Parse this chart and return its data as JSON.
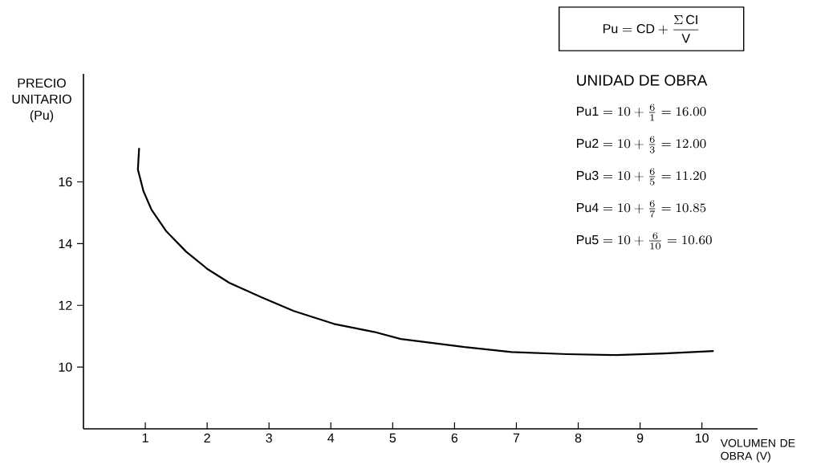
{
  "chart_data": {
    "type": "line",
    "xlabel": "VOLUMEN DE OBRA (V)",
    "ylabel": "PRECIO UNITARIO (Pu)",
    "x": [
      0.9,
      0.88,
      0.97,
      1.1,
      1.34,
      1.66,
      2.01,
      2.36,
      2.88,
      3.4,
      4.05,
      4.7,
      5.13,
      5.26,
      6.16,
      6.92,
      7.82,
      8.62,
      9.39,
      10.19
    ],
    "series": [
      {
        "color": "#000000",
        "values": [
          17.1,
          16.4,
          15.7,
          15.1,
          14.4,
          13.74,
          13.17,
          12.73,
          12.26,
          11.82,
          11.4,
          11.14,
          10.91,
          10.88,
          10.65,
          10.49,
          10.42,
          10.39,
          10.44,
          10.52
        ]
      }
    ],
    "xlim": [
      0,
      10.9
    ],
    "ylim": [
      8,
      19.5
    ],
    "xticks": [
      {
        "value": 1,
        "label": "1"
      },
      {
        "value": 2,
        "label": "2"
      },
      {
        "value": 3,
        "label": "3"
      },
      {
        "value": 4,
        "label": "4"
      },
      {
        "value": 5,
        "label": "5"
      },
      {
        "value": 6,
        "label": "6"
      },
      {
        "value": 7,
        "label": "7"
      },
      {
        "value": 8,
        "label": "8"
      },
      {
        "value": 9,
        "label": "9"
      },
      {
        "value": 10,
        "label": "10"
      }
    ],
    "yticks": [
      {
        "value": 10,
        "label": "10"
      },
      {
        "value": 12,
        "label": "12"
      },
      {
        "value": 14,
        "label": "14"
      },
      {
        "value": 16,
        "label": "16"
      }
    ],
    "annotations": [
      "\\mathrm{Pu} = \\mathrm{CD} + \\frac{\\Sigma\\,\\mathrm{CI}}{\\mathrm{V}}",
      "UNIDAD DE OBRA",
      "\\mathrm{Pu1} = 10 + \\frac{6}{1} = 16.00",
      "\\mathrm{Pu2} = 10 + \\frac{6}{3} = 12.00",
      "\\mathrm{Pu3} = 10 + \\frac{6}{5} = 11.20",
      "\\mathrm{Pu4} = 10 + \\frac{6}{7} = 10.85",
      "\\mathrm{Pu5} = 10 + \\frac{6}{10} = 10.60"
    ]
  }
}
